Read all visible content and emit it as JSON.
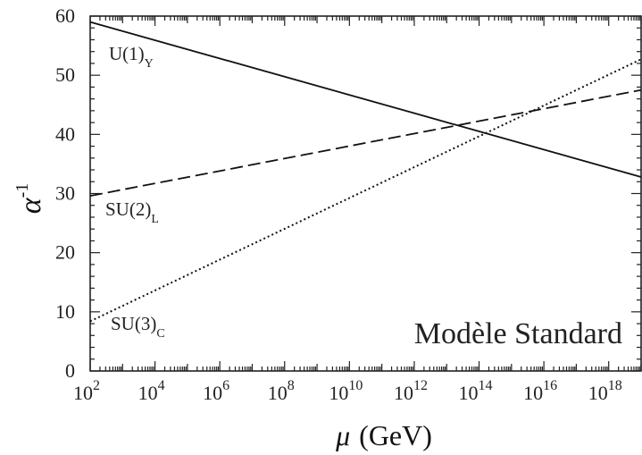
{
  "chart_data": {
    "type": "line",
    "title": "",
    "xlabel": "(GeV)",
    "xlabel_symbol": "μ",
    "ylabel_symbol": "α",
    "ylabel_superscript": "-1",
    "x_scale": "log10",
    "xlim": [
      100,
      1e+19
    ],
    "ylim": [
      0,
      60
    ],
    "grid": false,
    "x_ticks": [
      {
        "value": 100.0,
        "base": "10",
        "exp": "2"
      },
      {
        "value": 10000.0,
        "base": "10",
        "exp": "4"
      },
      {
        "value": 1000000.0,
        "base": "10",
        "exp": "6"
      },
      {
        "value": 100000000.0,
        "base": "10",
        "exp": "8"
      },
      {
        "value": 10000000000.0,
        "base": "10",
        "exp": "10"
      },
      {
        "value": 1000000000000.0,
        "base": "10",
        "exp": "12"
      },
      {
        "value": 100000000000000.0,
        "base": "10",
        "exp": "14"
      },
      {
        "value": 1e+16,
        "base": "10",
        "exp": "16"
      },
      {
        "value": 1e+18,
        "base": "10",
        "exp": "18"
      }
    ],
    "y_ticks": [
      0,
      10,
      20,
      30,
      40,
      50,
      60
    ],
    "series": [
      {
        "name": "U(1)",
        "name_sub": "Y",
        "style": "solid",
        "x": [
          100,
          1e+19
        ],
        "y": [
          59.0,
          32.8
        ]
      },
      {
        "name": "SU(2)",
        "name_sub": "L",
        "style": "dashed",
        "x": [
          100,
          1e+19
        ],
        "y": [
          29.6,
          47.5
        ]
      },
      {
        "name": "SU(3)",
        "name_sub": "C",
        "style": "dotted",
        "x": [
          100,
          1e+19
        ],
        "y": [
          8.4,
          52.7
        ]
      }
    ],
    "annotation": "Modèle Standard"
  }
}
